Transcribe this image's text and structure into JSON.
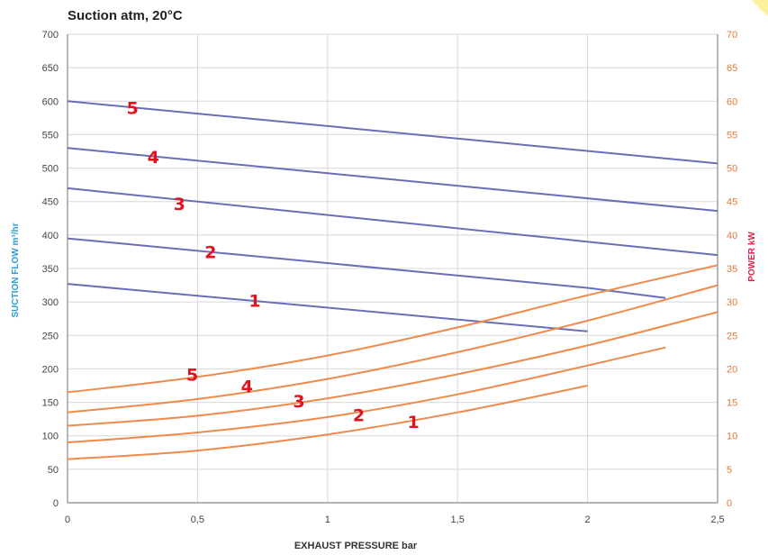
{
  "chart_data": {
    "type": "line",
    "title": "Suction atm, 20°C",
    "xlabel": "EXHAUST PRESSURE bar",
    "ylabel_left": "SUCTION FLOW m³/hr",
    "ylabel_right": "POWER kW",
    "xlim": [
      0,
      2.5
    ],
    "ylim_left": [
      0,
      700
    ],
    "ylim_right": [
      0,
      70
    ],
    "x_ticks": [
      "0",
      "0,5",
      "1",
      "1,5",
      "2",
      "2,5"
    ],
    "y_ticks_left": [
      "0",
      "50",
      "100",
      "150",
      "200",
      "250",
      "300",
      "350",
      "400",
      "450",
      "500",
      "550",
      "600",
      "650",
      "700"
    ],
    "y_ticks_right": [
      "0",
      "5",
      "10",
      "15",
      "20",
      "25",
      "30",
      "35",
      "40",
      "45",
      "50",
      "55",
      "60",
      "65",
      "70"
    ],
    "grid": true,
    "colors": {
      "flow": "#6a6fb5",
      "power": "#f08a4a",
      "labels": "#e0141e",
      "left_axis_label": "#2a9bd6",
      "right_axis": "#e07a3a",
      "right_axis_label": "#e0204a",
      "grid": "#d8d8d8"
    },
    "flow_series": [
      {
        "name": "5",
        "axis": "left",
        "points": [
          [
            0,
            600
          ],
          [
            2.5,
            507
          ]
        ]
      },
      {
        "name": "4",
        "axis": "left",
        "points": [
          [
            0,
            530
          ],
          [
            2.5,
            436
          ]
        ]
      },
      {
        "name": "3",
        "axis": "left",
        "points": [
          [
            0,
            470
          ],
          [
            2.5,
            370
          ]
        ]
      },
      {
        "name": "2",
        "axis": "left",
        "points": [
          [
            0,
            395
          ],
          [
            2.0,
            321
          ],
          [
            2.3,
            306
          ]
        ]
      },
      {
        "name": "1",
        "axis": "left",
        "points": [
          [
            0,
            327
          ],
          [
            2.0,
            256
          ]
        ]
      }
    ],
    "power_series": [
      {
        "name": "5",
        "axis": "right",
        "points": [
          [
            0,
            16.5
          ],
          [
            0.5,
            18.8
          ],
          [
            1.0,
            22.0
          ],
          [
            1.5,
            26.2
          ],
          [
            2.0,
            31.0
          ],
          [
            2.5,
            35.5
          ]
        ]
      },
      {
        "name": "4",
        "axis": "right",
        "points": [
          [
            0,
            13.5
          ],
          [
            0.5,
            15.5
          ],
          [
            1.0,
            18.5
          ],
          [
            1.5,
            22.5
          ],
          [
            2.0,
            27.2
          ],
          [
            2.5,
            32.5
          ]
        ]
      },
      {
        "name": "3",
        "axis": "right",
        "points": [
          [
            0,
            11.5
          ],
          [
            0.5,
            13.0
          ],
          [
            1.0,
            15.6
          ],
          [
            1.5,
            19.2
          ],
          [
            2.0,
            23.5
          ],
          [
            2.5,
            28.5
          ]
        ]
      },
      {
        "name": "2",
        "axis": "right",
        "points": [
          [
            0,
            9.0
          ],
          [
            0.5,
            10.5
          ],
          [
            1.0,
            12.8
          ],
          [
            1.5,
            16.2
          ],
          [
            2.0,
            20.5
          ],
          [
            2.3,
            23.2
          ]
        ]
      },
      {
        "name": "1",
        "axis": "right",
        "points": [
          [
            0,
            6.5
          ],
          [
            0.5,
            7.8
          ],
          [
            1.0,
            10.2
          ],
          [
            1.5,
            13.5
          ],
          [
            2.0,
            17.5
          ]
        ]
      }
    ],
    "flow_label_positions": [
      {
        "text": "5",
        "x": 0.25,
        "y": 590
      },
      {
        "text": "4",
        "x": 0.33,
        "y": 517
      },
      {
        "text": "3",
        "x": 0.43,
        "y": 447
      },
      {
        "text": "2",
        "x": 0.55,
        "y": 375
      },
      {
        "text": "1",
        "x": 0.72,
        "y": 302
      }
    ],
    "power_label_positions": [
      {
        "text": "5",
        "x": 0.48,
        "y": 19.2
      },
      {
        "text": "4",
        "x": 0.69,
        "y": 17.4
      },
      {
        "text": "3",
        "x": 0.89,
        "y": 15.2
      },
      {
        "text": "2",
        "x": 1.12,
        "y": 13.1
      },
      {
        "text": "1",
        "x": 1.33,
        "y": 12.1
      }
    ]
  }
}
